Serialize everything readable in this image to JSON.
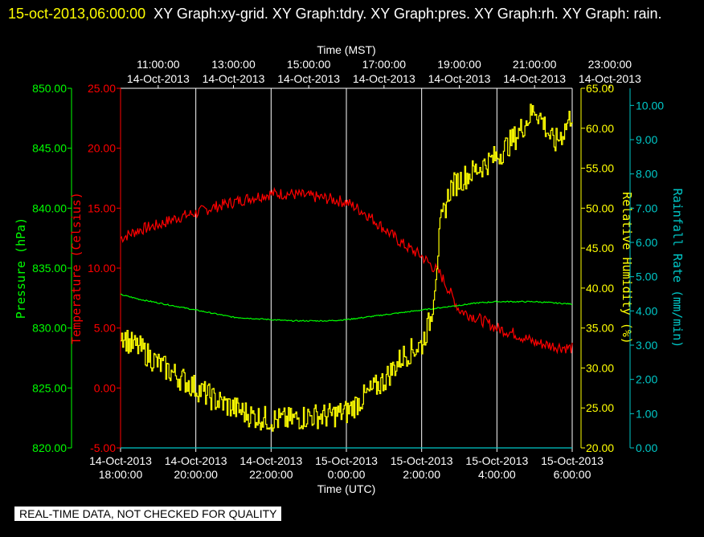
{
  "header": {
    "timestamp": "15-oct-2013,06:00:00",
    "titles": "XY Graph:xy-grid.  XY Graph:tdry.  XY Graph:pres.  XY Graph:rh.  XY Graph: rain."
  },
  "notice": "REAL-TIME DATA, NOT CHECKED FOR QUALITY",
  "chart_data": {
    "type": "line",
    "grid": true,
    "top_axis": {
      "title": "Time (MST)",
      "ticks": [
        {
          "time": "11:00:00",
          "date": "14-Oct-2013"
        },
        {
          "time": "13:00:00",
          "date": "14-Oct-2013"
        },
        {
          "time": "15:00:00",
          "date": "14-Oct-2013"
        },
        {
          "time": "17:00:00",
          "date": "14-Oct-2013"
        },
        {
          "time": "19:00:00",
          "date": "14-Oct-2013"
        },
        {
          "time": "21:00:00",
          "date": "14-Oct-2013"
        },
        {
          "time": "23:00:00",
          "date": "14-Oct-2013"
        }
      ]
    },
    "bottom_axis": {
      "title": "Time (UTC)",
      "xlim": [
        18,
        30
      ],
      "ticks": [
        {
          "date": "14-Oct-2013",
          "time": "18:00:00"
        },
        {
          "date": "14-Oct-2013",
          "time": "20:00:00"
        },
        {
          "date": "14-Oct-2013",
          "time": "22:00:00"
        },
        {
          "date": "15-Oct-2013",
          "time": "0:00:00"
        },
        {
          "date": "15-Oct-2013",
          "time": "2:00:00"
        },
        {
          "date": "15-Oct-2013",
          "time": "4:00:00"
        },
        {
          "date": "15-Oct-2013",
          "time": "6:00:00"
        }
      ]
    },
    "y_axes": {
      "pressure": {
        "label": "Pressure (hPa)",
        "ylim": [
          820,
          850
        ],
        "ticks": [
          "820.00",
          "825.00",
          "830.00",
          "835.00",
          "840.00",
          "845.00",
          "850.00"
        ],
        "color": "#00ff00"
      },
      "temperature": {
        "label": "Temperature (Celsius)",
        "ylim": [
          -5,
          25
        ],
        "ticks": [
          "-5.00",
          "0.00",
          "5.00",
          "10.00",
          "15.00",
          "20.00",
          "25.00"
        ],
        "color": "#ff0000"
      },
      "humidity": {
        "label": "Relative Humidity (%)",
        "ylim": [
          20,
          65
        ],
        "ticks": [
          "20.00",
          "25.00",
          "30.00",
          "35.00",
          "40.00",
          "45.00",
          "50.00",
          "55.00",
          "60.00",
          "65.00"
        ],
        "color": "#ffff00"
      },
      "rain": {
        "label": "Rainfall Rate (mm/min)",
        "ylim": [
          0,
          10.5
        ],
        "ticks": [
          "0.00",
          "1.00",
          "2.00",
          "3.00",
          "4.00",
          "5.00",
          "6.00",
          "7.00",
          "8.00",
          "9.00",
          "10.00"
        ],
        "color": "#00c8c8"
      }
    },
    "series": [
      {
        "name": "tdry",
        "axis": "temperature",
        "color": "#ff0000",
        "x": [
          18,
          18.5,
          19,
          19.5,
          20,
          20.5,
          21,
          21.5,
          22,
          22.5,
          23,
          23.5,
          24,
          24.5,
          25,
          25.5,
          26,
          26.5,
          27,
          27.5,
          28,
          28.5,
          29,
          29.5,
          30
        ],
        "y": [
          12.5,
          13.2,
          13.6,
          14.2,
          14.6,
          15.1,
          15.5,
          15.9,
          16.2,
          16.2,
          16.0,
          15.8,
          15.5,
          14.6,
          13.3,
          12.0,
          11.0,
          9.5,
          6.5,
          5.8,
          5.0,
          4.5,
          3.8,
          3.5,
          3.3
        ]
      },
      {
        "name": "pres",
        "axis": "pressure",
        "color": "#00ff00",
        "x": [
          18,
          18.5,
          19,
          19.5,
          20,
          20.5,
          21,
          21.5,
          22,
          22.5,
          23,
          23.5,
          24,
          24.5,
          25,
          25.5,
          26,
          26.5,
          27,
          27.5,
          28,
          28.5,
          29,
          29.5,
          30
        ],
        "y": [
          832.8,
          832.4,
          832.1,
          831.8,
          831.5,
          831.2,
          830.9,
          830.8,
          830.7,
          830.6,
          830.6,
          830.6,
          830.7,
          830.9,
          831.1,
          831.3,
          831.5,
          831.7,
          831.9,
          832.1,
          832.2,
          832.2,
          832.2,
          832.1,
          832.0
        ]
      },
      {
        "name": "rh",
        "axis": "humidity",
        "color": "#ffff00",
        "x": [
          18,
          18.25,
          18.5,
          19,
          19.5,
          20,
          20.5,
          21,
          21.5,
          22,
          22.5,
          23,
          23.5,
          24,
          24.5,
          25,
          25.5,
          26,
          26.25,
          26.5,
          26.75,
          27,
          27.5,
          28,
          28.5,
          29,
          29.25,
          29.5,
          29.75,
          30
        ],
        "y": [
          34.5,
          33.0,
          32.5,
          30.5,
          29.0,
          27.5,
          26.0,
          25.0,
          24.0,
          23.5,
          23.5,
          24.0,
          24.0,
          24.5,
          26.5,
          28.5,
          31.5,
          33.0,
          36.5,
          48.0,
          52.5,
          53.5,
          55.0,
          56.5,
          59.0,
          62.5,
          60.5,
          58.0,
          59.5,
          62.0
        ]
      },
      {
        "name": "rain",
        "axis": "rain",
        "color": "#00c8c8",
        "x": [
          18,
          30
        ],
        "y": [
          0,
          0
        ]
      }
    ]
  }
}
